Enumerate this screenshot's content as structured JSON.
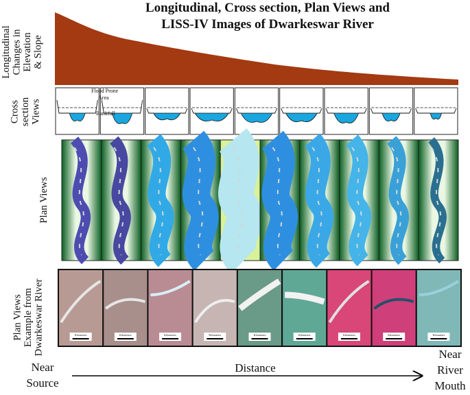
{
  "header": {
    "title_lines": [
      "Longitudinal, Cross section, Plan Views and",
      "LISS-IV Images of Dwarkeswar River"
    ]
  },
  "row_labels": {
    "elevation": [
      "Longitudinal",
      "Changes in",
      "Elevation",
      "& Slope"
    ],
    "cross_section": [
      "Cross",
      "section",
      "Views"
    ],
    "plan_views": [
      "Plan Views"
    ],
    "examples": [
      "Plan Views",
      "Example from",
      "Dwarkeswar River"
    ]
  },
  "cross_section_annotations": {
    "flood_prone": [
      "Flood Prone",
      "Area"
    ],
    "bankfull": "Bankfull"
  },
  "scale_label": "Kilometers",
  "axis": {
    "start": [
      "Near",
      "Source"
    ],
    "middle": "Distance",
    "end": [
      "Near",
      "River",
      "Mouth"
    ]
  }
}
